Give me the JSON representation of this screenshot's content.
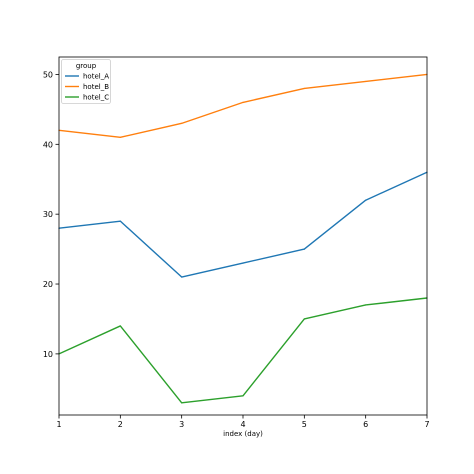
{
  "chart_data": {
    "type": "line",
    "title": "",
    "xlabel": "index (day)",
    "ylabel": "",
    "x": [
      1,
      2,
      3,
      4,
      5,
      6,
      7
    ],
    "xlim": [
      1,
      7
    ],
    "ylim": [
      1.25,
      52.5
    ],
    "xticks": [
      1,
      2,
      3,
      4,
      5,
      6,
      7
    ],
    "yticks": [
      10,
      20,
      30,
      40,
      50
    ],
    "grid": false,
    "legend": {
      "title": "group",
      "placement": "top-left"
    },
    "series": [
      {
        "name": "hotel_A",
        "color": "#1f77b4",
        "values": [
          28,
          29,
          21,
          23,
          25,
          32,
          36
        ]
      },
      {
        "name": "hotel_B",
        "color": "#ff7f0e",
        "values": [
          42,
          41,
          43,
          46,
          48,
          49,
          50
        ]
      },
      {
        "name": "hotel_C",
        "color": "#2ca02c",
        "values": [
          10,
          14,
          3,
          4,
          15,
          17,
          18
        ]
      }
    ]
  }
}
